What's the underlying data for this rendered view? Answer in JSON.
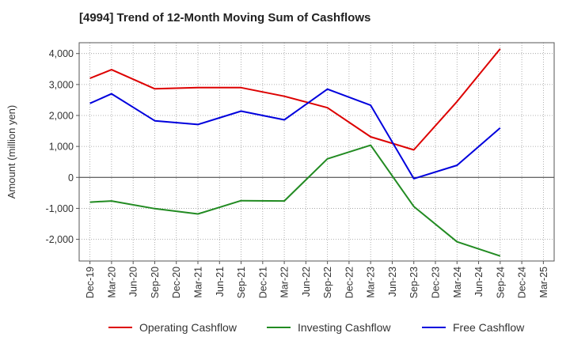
{
  "chart_data": {
    "type": "line",
    "title": "[4994]  Trend of 12-Month Moving Sum of Cashflows",
    "xlabel": "",
    "ylabel": "Amount (million yen)",
    "categories": [
      "Dec-19",
      "Mar-20",
      "Jun-20",
      "Sep-20",
      "Dec-20",
      "Mar-21",
      "Jun-21",
      "Sep-21",
      "Dec-21",
      "Mar-22",
      "Jun-22",
      "Sep-22",
      "Dec-22",
      "Mar-23",
      "Jun-23",
      "Sep-23",
      "Dec-23",
      "Mar-24",
      "Jun-24",
      "Sep-24",
      "Dec-24",
      "Mar-25"
    ],
    "ylim": [
      -2700,
      4350
    ],
    "yticks": [
      -2000,
      -1000,
      0,
      1000,
      2000,
      3000,
      4000
    ],
    "ytick_labels": [
      "-2,000",
      "-1,000",
      "0",
      "1,000",
      "2,000",
      "3,000",
      "4,000"
    ],
    "grid": true,
    "legend_position": "bottom",
    "series": [
      {
        "name": "Operating Cashflow",
        "color": "#dd0000",
        "values": [
          3200,
          3480,
          null,
          2860,
          null,
          2900,
          null,
          2900,
          null,
          2620,
          null,
          2250,
          null,
          1310,
          null,
          890,
          null,
          2450,
          null,
          4150,
          null,
          null
        ]
      },
      {
        "name": "Investing Cashflow",
        "color": "#228b22",
        "values": [
          -800,
          -760,
          null,
          -1010,
          null,
          -1180,
          null,
          -750,
          null,
          -760,
          null,
          600,
          null,
          1040,
          null,
          -940,
          null,
          -2080,
          null,
          -2540,
          null,
          null
        ]
      },
      {
        "name": "Free Cashflow",
        "color": "#0000dd",
        "values": [
          2390,
          2700,
          null,
          1830,
          null,
          1710,
          null,
          2140,
          null,
          1860,
          null,
          2850,
          null,
          2330,
          null,
          -40,
          null,
          390,
          null,
          1600,
          null,
          null
        ]
      }
    ]
  }
}
